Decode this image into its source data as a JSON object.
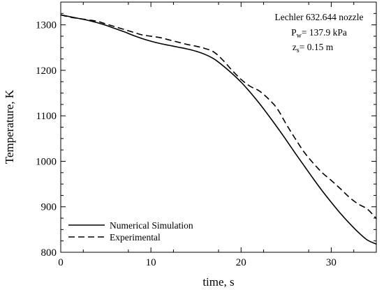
{
  "chart_data": {
    "type": "line",
    "title": "",
    "xlabel": "time, s",
    "ylabel": "Temperature, K",
    "xlim": [
      0,
      35
    ],
    "ylim": [
      800,
      1350
    ],
    "xticks": [
      0,
      10,
      20,
      30
    ],
    "xtick_labels": [
      "0",
      "10",
      "20",
      "30"
    ],
    "yticks": [
      800,
      900,
      1000,
      1100,
      1200,
      1300
    ],
    "ytick_labels": [
      "800",
      "900",
      "1000",
      "1100",
      "1200",
      "1300"
    ],
    "grid": false,
    "legend_position": "bottom-left",
    "annotation": {
      "line1": "Lechler 632.644 nozzle",
      "line2_main": "P",
      "line2_sub": "w",
      "line2_rest": "= 137.9 kPa",
      "line3_main": "z",
      "line3_sub": "s",
      "line3_rest": "= 0.15 m"
    },
    "series": [
      {
        "name": "Numerical Simulation",
        "style": "solid",
        "color": "#000000",
        "x": [
          0,
          1,
          2,
          3,
          4,
          5,
          6,
          7,
          8,
          9,
          10,
          11,
          12,
          13,
          14,
          15,
          16,
          17,
          18,
          19,
          20,
          21,
          22,
          23,
          24,
          25,
          26,
          27,
          28,
          29,
          30,
          31,
          32,
          33,
          34,
          35
        ],
        "y": [
          1322,
          1318,
          1314,
          1310,
          1305,
          1299,
          1292,
          1285,
          1277,
          1270,
          1264,
          1259,
          1255,
          1251,
          1247,
          1242,
          1235,
          1225,
          1210,
          1193,
          1174,
          1152,
          1128,
          1102,
          1075,
          1047,
          1018,
          990,
          962,
          935,
          910,
          886,
          864,
          844,
          827,
          818
        ]
      },
      {
        "name": "Experimental",
        "style": "dashed",
        "color": "#000000",
        "x": [
          0,
          1,
          2,
          3,
          4,
          5,
          6,
          7,
          8,
          9,
          10,
          11,
          12,
          13,
          14,
          15,
          16,
          17,
          18,
          19,
          20,
          21,
          22,
          23,
          24,
          25,
          26,
          27,
          28,
          29,
          30,
          31,
          32,
          33,
          34,
          35
        ],
        "y": [
          1322,
          1317,
          1314,
          1311,
          1308,
          1302,
          1296,
          1290,
          1284,
          1278,
          1275,
          1272,
          1267,
          1262,
          1257,
          1253,
          1248,
          1240,
          1222,
          1200,
          1180,
          1165,
          1155,
          1138,
          1116,
          1082,
          1050,
          1020,
          996,
          975,
          958,
          940,
          921,
          906,
          895,
          874
        ]
      }
    ]
  }
}
